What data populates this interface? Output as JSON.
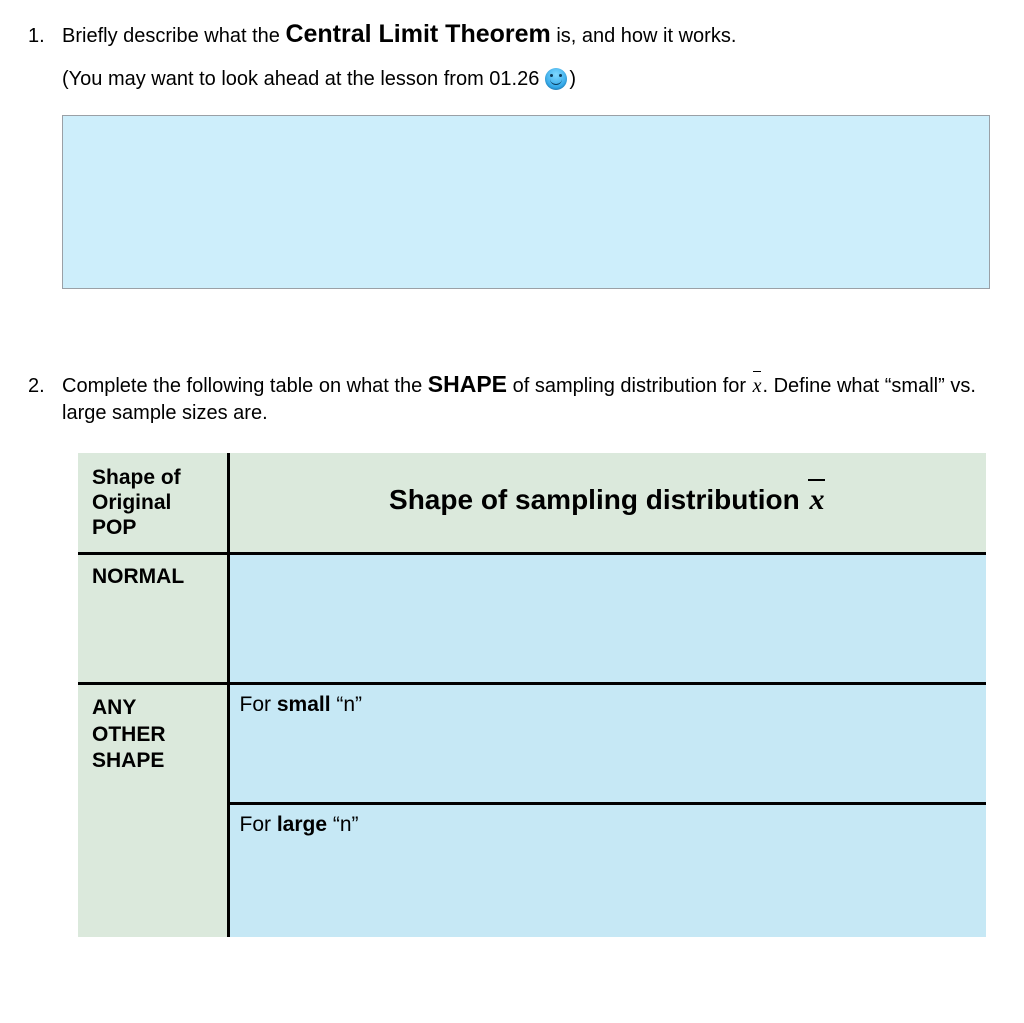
{
  "colors": {
    "page_bg": "#ffffff",
    "text": "#000000",
    "answer_box_fill": "#cdeefb",
    "answer_box_border": "#9aa0a6",
    "table_green": "#dbe9dc",
    "table_blue": "#c6e8f5",
    "table_border": "#000000"
  },
  "q1": {
    "number": "1.",
    "text_before_bold": "Briefly describe what the ",
    "bold_term": "Central Limit Theorem",
    "text_after_bold": " is, and how it works.",
    "hint_prefix": "(You may want to look ahead at the lesson from 01.26  ",
    "hint_suffix": ")"
  },
  "q2": {
    "number": "2.",
    "text_before_bold": "Complete the following table on what the ",
    "bold_term": "SHAPE",
    "text_mid": " of sampling distribution for ",
    "xbar": "x",
    "text_after": ". Define what “small” vs. large sample sizes are.",
    "table": {
      "header_left_line1": "Shape of",
      "header_left_line2": "Original",
      "header_left_line3": "POP",
      "header_right_prefix": "Shape of sampling distribution ",
      "header_right_xbar": "x",
      "row1_label": "NORMAL",
      "row2_label_line1": "ANY",
      "row2_label_line2": "OTHER",
      "row2_label_line3": "SHAPE",
      "row2_sub1_prefix": "For ",
      "row2_sub1_bold": "small",
      "row2_sub1_suffix": " “n”",
      "row2_sub2_prefix": "For ",
      "row2_sub2_bold": "large",
      "row2_sub2_suffix": " “n”"
    }
  }
}
